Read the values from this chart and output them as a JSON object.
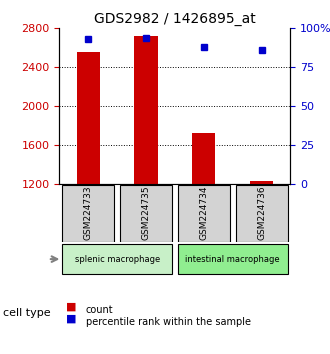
{
  "title": "GDS2982 / 1426895_at",
  "samples": [
    "GSM224733",
    "GSM224735",
    "GSM224734",
    "GSM224736"
  ],
  "counts": [
    2560,
    2720,
    1720,
    1230
  ],
  "percentile_ranks": [
    93,
    94,
    88,
    86
  ],
  "ylim_left": [
    1200,
    2800
  ],
  "ylim_right": [
    0,
    100
  ],
  "yticks_left": [
    1200,
    1600,
    2000,
    2400,
    2800
  ],
  "yticks_right": [
    0,
    25,
    50,
    75,
    100
  ],
  "ytick_labels_right": [
    "0",
    "25",
    "50",
    "75",
    "100%"
  ],
  "groups": [
    {
      "label": "splenic macrophage",
      "samples": [
        0,
        1
      ],
      "color": "#c8f0c8"
    },
    {
      "label": "intestinal macrophage",
      "samples": [
        2,
        3
      ],
      "color": "#90ee90"
    }
  ],
  "bar_color": "#cc0000",
  "dot_color": "#0000cc",
  "grid_color": "#000000",
  "sample_box_color": "#d3d3d3",
  "background_color": "#ffffff",
  "left_label_color": "#cc0000",
  "right_label_color": "#0000cc",
  "legend_count_label": "count",
  "legend_pct_label": "percentile rank within the sample",
  "cell_type_label": "cell type",
  "bar_width": 0.4
}
